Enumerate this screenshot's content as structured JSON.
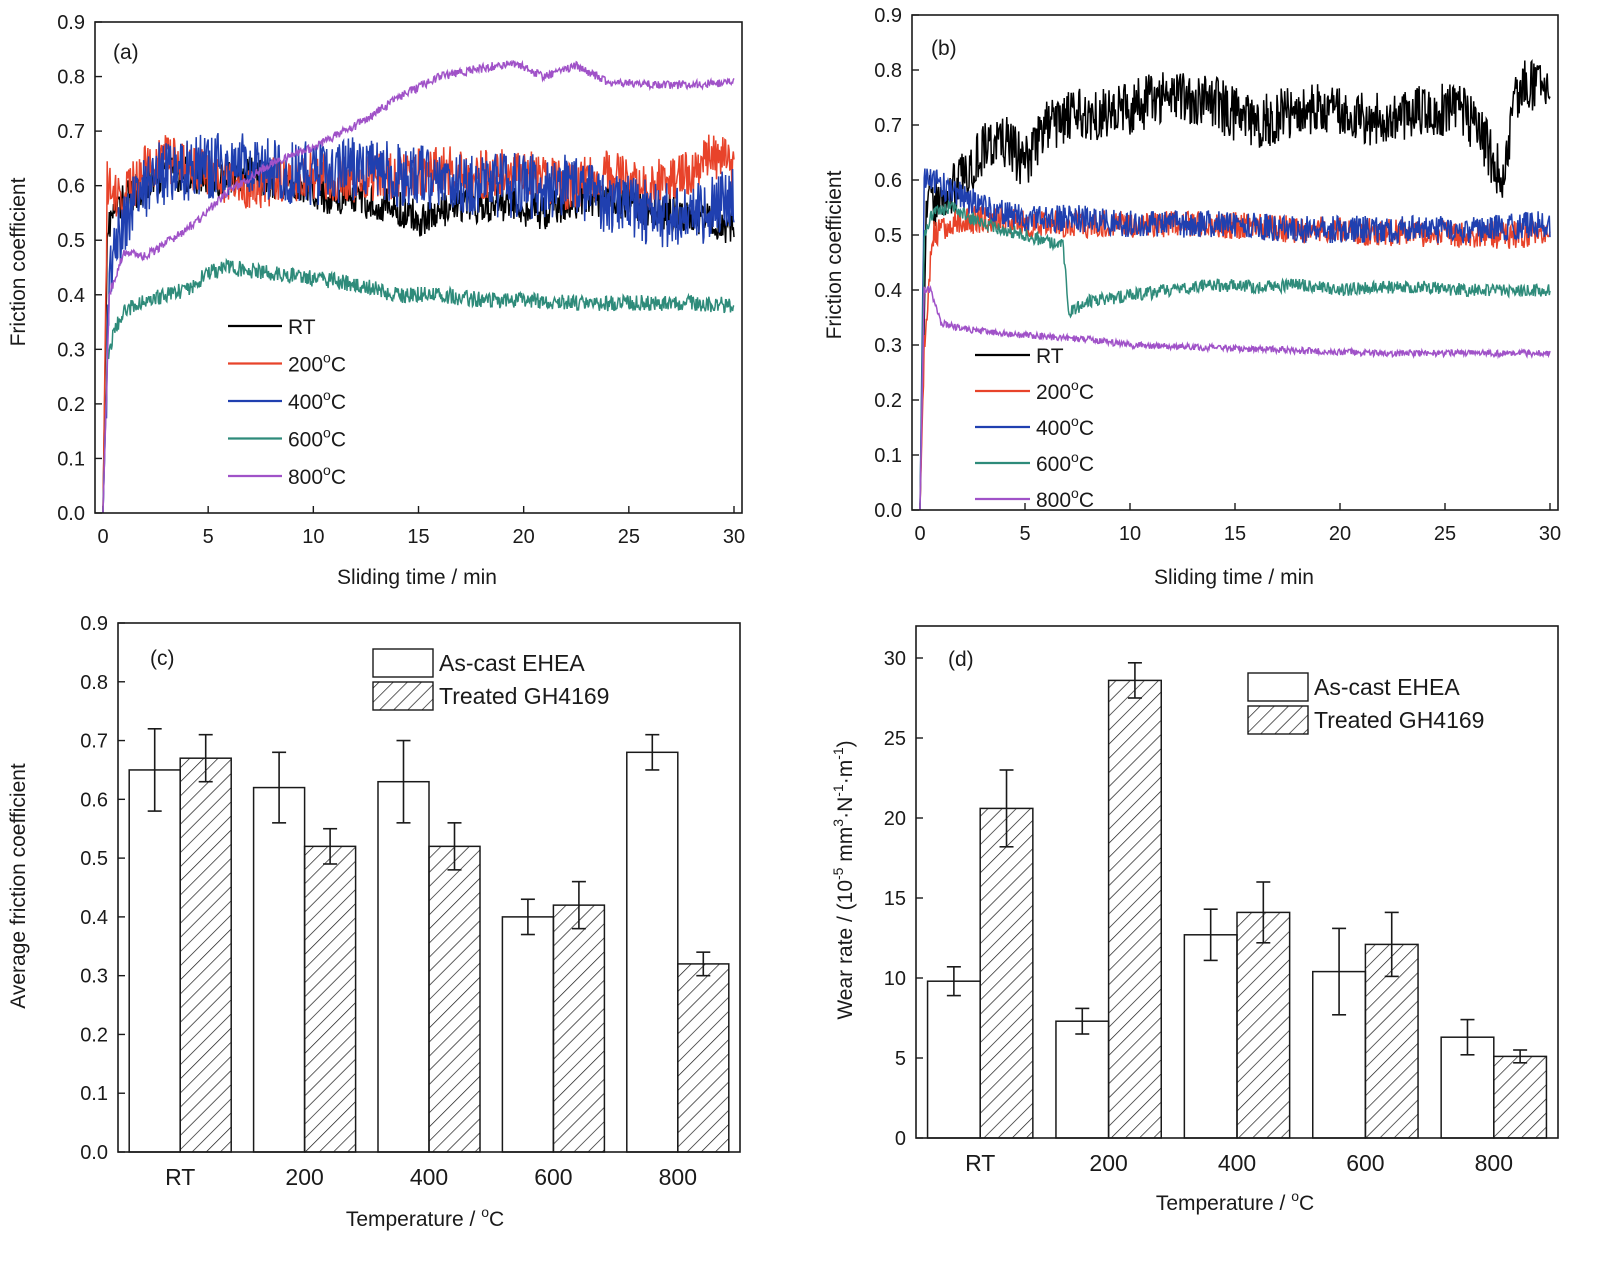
{
  "chart_data": [
    {
      "type": "line",
      "panel": "(a)",
      "xlabel": "Sliding time / min",
      "ylabel": "Friction coefficient",
      "xlim": [
        0,
        30
      ],
      "ylim": [
        0,
        0.9
      ],
      "xticks": [
        "0",
        "5",
        "10",
        "15",
        "20",
        "25",
        "30"
      ],
      "yticks": [
        "0.0",
        "0.1",
        "0.2",
        "0.3",
        "0.4",
        "0.5",
        "0.6",
        "0.7",
        "0.8",
        "0.9"
      ],
      "legend_position": "lower-center",
      "series": [
        {
          "name": "RT",
          "name_main": "RT",
          "name_sup": "",
          "name_tail": "",
          "color": "#000000",
          "amplitude": 0.035,
          "x": [
            0,
            0.2,
            0.5,
            1,
            2,
            3,
            4,
            5,
            7,
            9,
            11,
            13,
            15,
            17,
            19,
            21,
            23,
            25,
            27,
            29,
            30
          ],
          "y": [
            0.0,
            0.52,
            0.55,
            0.57,
            0.6,
            0.63,
            0.62,
            0.61,
            0.62,
            0.6,
            0.58,
            0.57,
            0.54,
            0.56,
            0.57,
            0.55,
            0.58,
            0.57,
            0.55,
            0.54,
            0.52
          ]
        },
        {
          "name": "200°C",
          "name_main": "200",
          "name_sup": "o",
          "name_tail": "C",
          "color": "#e8432a",
          "amplitude": 0.045,
          "x": [
            0,
            0.2,
            0.5,
            1,
            2,
            3,
            5,
            7,
            10,
            12,
            14,
            16,
            18,
            20,
            22,
            24,
            26,
            28,
            29,
            30
          ],
          "y": [
            0.0,
            0.6,
            0.58,
            0.58,
            0.63,
            0.65,
            0.62,
            0.6,
            0.62,
            0.61,
            0.62,
            0.63,
            0.62,
            0.63,
            0.6,
            0.62,
            0.6,
            0.62,
            0.66,
            0.63
          ]
        },
        {
          "name": "400°C",
          "name_main": "400",
          "name_sup": "o",
          "name_tail": "C",
          "color": "#2040b0",
          "amplitude": 0.06,
          "x": [
            0,
            0.3,
            0.7,
            1.5,
            2.5,
            4,
            6,
            8,
            10,
            12,
            14,
            16,
            18,
            20,
            22,
            24,
            26,
            28,
            30
          ],
          "y": [
            0.0,
            0.42,
            0.5,
            0.58,
            0.62,
            0.63,
            0.64,
            0.63,
            0.62,
            0.63,
            0.62,
            0.61,
            0.6,
            0.6,
            0.6,
            0.57,
            0.55,
            0.54,
            0.58
          ]
        },
        {
          "name": "600°C",
          "name_main": "600",
          "name_sup": "o",
          "name_tail": "C",
          "color": "#2e8b7a",
          "amplitude": 0.015,
          "x": [
            0,
            0.2,
            0.5,
            1,
            2,
            3,
            4,
            5,
            6,
            8,
            10,
            12,
            14,
            16,
            18,
            20,
            22,
            24,
            26,
            28,
            30
          ],
          "y": [
            0.0,
            0.28,
            0.33,
            0.37,
            0.39,
            0.4,
            0.41,
            0.44,
            0.45,
            0.44,
            0.43,
            0.42,
            0.4,
            0.4,
            0.39,
            0.39,
            0.385,
            0.385,
            0.385,
            0.385,
            0.38
          ]
        },
        {
          "name": "800°C",
          "name_main": "800",
          "name_sup": "o",
          "name_tail": "C",
          "color": "#a052c8",
          "amplitude": 0.008,
          "x": [
            0,
            0.3,
            1,
            2,
            4,
            6,
            8,
            10,
            12,
            14,
            16,
            18,
            19.5,
            21,
            22.5,
            24,
            26,
            28,
            30
          ],
          "y": [
            0.0,
            0.4,
            0.48,
            0.47,
            0.52,
            0.59,
            0.64,
            0.67,
            0.71,
            0.76,
            0.8,
            0.815,
            0.825,
            0.8,
            0.82,
            0.79,
            0.785,
            0.785,
            0.79
          ]
        }
      ]
    },
    {
      "type": "line",
      "panel": "(b)",
      "xlabel": "Sliding time / min",
      "ylabel": "Friction coefficient",
      "xlim": [
        0,
        30
      ],
      "ylim": [
        0,
        0.9
      ],
      "xticks": [
        "0",
        "5",
        "10",
        "15",
        "20",
        "25",
        "30"
      ],
      "yticks": [
        "0.0",
        "0.1",
        "0.2",
        "0.3",
        "0.4",
        "0.5",
        "0.6",
        "0.7",
        "0.8",
        "0.9"
      ],
      "legend_position": "lower-left",
      "series": [
        {
          "name": "RT",
          "name_main": "RT",
          "name_sup": "",
          "name_tail": "",
          "color": "#000000",
          "amplitude": 0.05,
          "x": [
            0,
            0.3,
            1,
            2,
            3,
            4,
            5,
            6,
            8,
            10,
            12,
            14,
            16,
            18,
            20,
            22,
            24,
            26,
            27,
            27.7,
            28.5,
            30
          ],
          "y": [
            0.0,
            0.56,
            0.56,
            0.6,
            0.66,
            0.67,
            0.63,
            0.7,
            0.72,
            0.73,
            0.76,
            0.74,
            0.7,
            0.73,
            0.72,
            0.71,
            0.73,
            0.72,
            0.66,
            0.6,
            0.77,
            0.78
          ]
        },
        {
          "name": "200°C",
          "name_main": "200",
          "name_sup": "o",
          "name_tail": "C",
          "color": "#e8432a",
          "amplitude": 0.025,
          "x": [
            0,
            0.2,
            0.6,
            1.5,
            3,
            5,
            8,
            10,
            14,
            18,
            22,
            26,
            30
          ],
          "y": [
            0.0,
            0.3,
            0.5,
            0.52,
            0.53,
            0.52,
            0.52,
            0.52,
            0.52,
            0.51,
            0.505,
            0.5,
            0.5
          ]
        },
        {
          "name": "400°C",
          "name_main": "400",
          "name_sup": "o",
          "name_tail": "C",
          "color": "#2040b0",
          "amplitude": 0.025,
          "x": [
            0,
            0.2,
            0.6,
            1.5,
            3,
            5,
            8,
            10,
            14,
            18,
            22,
            26,
            30
          ],
          "y": [
            0.0,
            0.6,
            0.6,
            0.58,
            0.55,
            0.53,
            0.53,
            0.52,
            0.52,
            0.51,
            0.51,
            0.51,
            0.52
          ]
        },
        {
          "name": "600°C",
          "name_main": "600",
          "name_sup": "o",
          "name_tail": "C",
          "color": "#2e8b7a",
          "amplitude": 0.012,
          "x": [
            0,
            0.2,
            0.6,
            1.5,
            3,
            5,
            6.8,
            7.1,
            8,
            10,
            12,
            14,
            16,
            18,
            20,
            22,
            24,
            26,
            28,
            30
          ],
          "y": [
            0.0,
            0.5,
            0.54,
            0.55,
            0.52,
            0.5,
            0.48,
            0.36,
            0.38,
            0.39,
            0.4,
            0.41,
            0.405,
            0.41,
            0.4,
            0.405,
            0.405,
            0.4,
            0.4,
            0.4
          ]
        },
        {
          "name": "800°C",
          "name_main": "800",
          "name_sup": "o",
          "name_tail": "C",
          "color": "#a052c8",
          "amplitude": 0.006,
          "x": [
            0,
            0.2,
            0.5,
            1,
            2,
            4,
            6,
            8,
            10,
            14,
            18,
            22,
            26,
            30
          ],
          "y": [
            0.0,
            0.4,
            0.4,
            0.34,
            0.33,
            0.32,
            0.315,
            0.31,
            0.3,
            0.295,
            0.29,
            0.285,
            0.285,
            0.285
          ]
        }
      ]
    },
    {
      "type": "bar",
      "panel": "(c)",
      "xlabel_main": "Temperature / ",
      "xlabel_sup": "o",
      "xlabel_tail": "C",
      "ylabel": "Average friction coefficient",
      "ylim": [
        0,
        0.9
      ],
      "yticks": [
        "0.0",
        "0.1",
        "0.2",
        "0.3",
        "0.4",
        "0.5",
        "0.6",
        "0.7",
        "0.8",
        "0.9"
      ],
      "categories": [
        "RT",
        "200",
        "400",
        "600",
        "800"
      ],
      "legend_position": "top-right",
      "series": [
        {
          "name": "As-cast EHEA",
          "pattern": "open",
          "values": [
            0.65,
            0.62,
            0.63,
            0.4,
            0.68
          ],
          "errors": [
            0.07,
            0.06,
            0.07,
            0.03,
            0.03
          ]
        },
        {
          "name": "Treated GH4169",
          "pattern": "hatched",
          "values": [
            0.67,
            0.52,
            0.52,
            0.42,
            0.32
          ],
          "errors": [
            0.04,
            0.03,
            0.04,
            0.04,
            0.02
          ]
        }
      ]
    },
    {
      "type": "bar",
      "panel": "(d)",
      "xlabel_main": "Temperature / ",
      "xlabel_sup": "o",
      "xlabel_tail": "C",
      "ylabel_parts": [
        "Wear rate / (10",
        "-5",
        " mm",
        "3",
        "·N",
        "-1",
        "·m",
        "-1",
        ")"
      ],
      "ylim": [
        0,
        32
      ],
      "yticks": [
        "0",
        "5",
        "10",
        "15",
        "20",
        "25",
        "30"
      ],
      "categories": [
        "RT",
        "200",
        "400",
        "600",
        "800"
      ],
      "legend_position": "top-right",
      "series": [
        {
          "name": "As-cast EHEA",
          "pattern": "open",
          "values": [
            9.8,
            7.3,
            12.7,
            10.4,
            6.3
          ],
          "errors": [
            0.9,
            0.8,
            1.6,
            2.7,
            1.1
          ]
        },
        {
          "name": "Treated GH4169",
          "pattern": "hatched",
          "values": [
            20.6,
            28.6,
            14.1,
            12.1,
            5.1
          ],
          "errors": [
            2.4,
            1.1,
            1.9,
            2.0,
            0.4
          ]
        }
      ]
    }
  ]
}
